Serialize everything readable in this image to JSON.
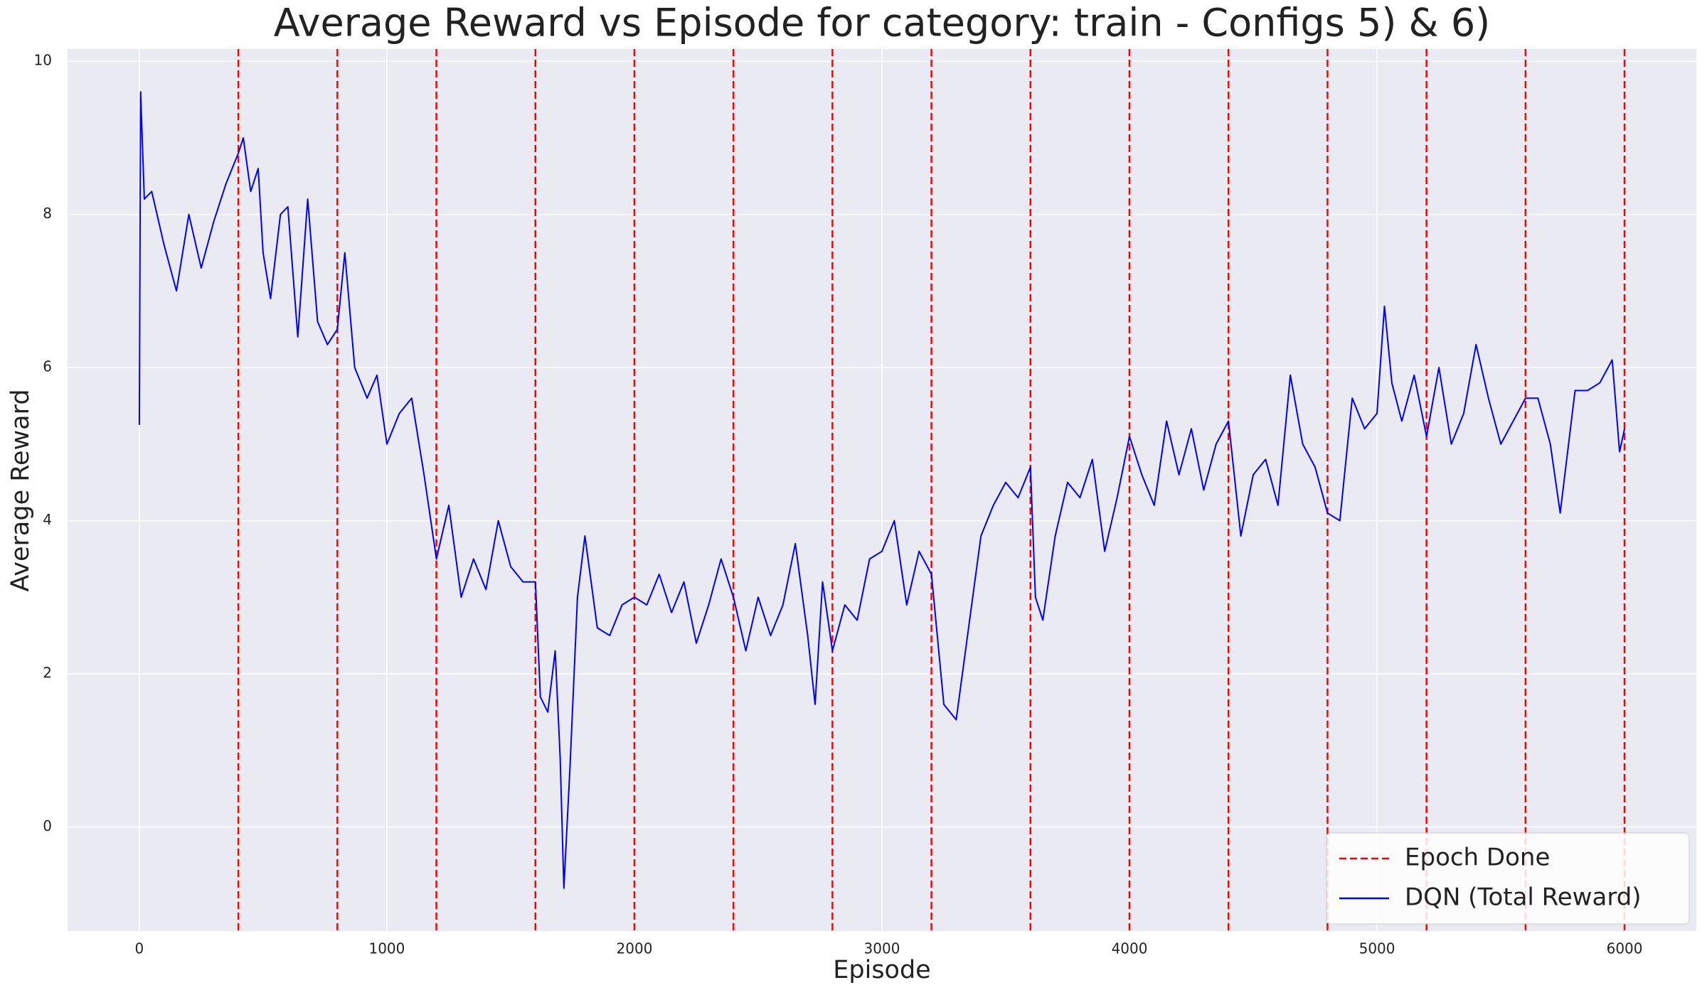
{
  "chart_data": {
    "type": "line",
    "title": "Average Reward vs Episode for category: train - Configs 5) & 6)",
    "x_label": "Episode",
    "y_label": "Average Reward",
    "xlim": [
      -290,
      6290
    ],
    "ylim": [
      -1.36,
      10.16
    ],
    "xticks": [
      0,
      1000,
      2000,
      3000,
      4000,
      5000,
      6000
    ],
    "yticks": [
      0,
      2,
      4,
      6,
      8,
      10
    ],
    "grid": true,
    "legend": "lower right",
    "series": [
      {
        "name": "Epoch Done",
        "color": "#ff0000",
        "dashed": true,
        "vlines": [
          400,
          800,
          1200,
          1600,
          2000,
          2400,
          2800,
          3200,
          3600,
          4000,
          4400,
          4800,
          5200,
          5600,
          6000
        ]
      },
      {
        "name": "DQN (Total Reward)",
        "color": "#0000ff",
        "x": [
          0,
          5,
          20,
          50,
          100,
          150,
          200,
          250,
          300,
          350,
          400,
          420,
          450,
          480,
          500,
          530,
          570,
          600,
          640,
          680,
          720,
          760,
          800,
          830,
          870,
          920,
          960,
          1000,
          1050,
          1100,
          1150,
          1200,
          1250,
          1300,
          1350,
          1400,
          1450,
          1500,
          1550,
          1600,
          1620,
          1650,
          1680,
          1700,
          1715,
          1740,
          1770,
          1800,
          1850,
          1900,
          1950,
          2000,
          2050,
          2100,
          2150,
          2200,
          2250,
          2300,
          2350,
          2400,
          2450,
          2500,
          2550,
          2600,
          2650,
          2700,
          2730,
          2760,
          2800,
          2850,
          2900,
          2950,
          3000,
          3050,
          3100,
          3150,
          3200,
          3250,
          3300,
          3350,
          3400,
          3450,
          3500,
          3550,
          3600,
          3620,
          3650,
          3700,
          3750,
          3800,
          3850,
          3900,
          3950,
          4000,
          4050,
          4100,
          4150,
          4200,
          4250,
          4300,
          4350,
          4400,
          4450,
          4500,
          4550,
          4600,
          4650,
          4700,
          4750,
          4800,
          4850,
          4900,
          4950,
          5000,
          5030,
          5060,
          5100,
          5150,
          5200,
          5250,
          5300,
          5350,
          5400,
          5450,
          5500,
          5550,
          5600,
          5650,
          5700,
          5740,
          5800,
          5850,
          5900,
          5950,
          5980,
          6000
        ],
        "values": [
          5.25,
          9.6,
          8.2,
          8.3,
          7.6,
          7.0,
          8.0,
          7.3,
          7.9,
          8.4,
          8.8,
          9.0,
          8.3,
          8.6,
          7.5,
          6.9,
          8.0,
          8.1,
          6.4,
          8.2,
          6.6,
          6.3,
          6.5,
          7.5,
          6.0,
          5.6,
          5.9,
          5.0,
          5.4,
          5.6,
          4.6,
          3.5,
          4.2,
          3.0,
          3.5,
          3.1,
          4.0,
          3.4,
          3.2,
          3.2,
          1.7,
          1.5,
          2.3,
          0.9,
          -0.8,
          0.8,
          3.0,
          3.8,
          2.6,
          2.5,
          2.9,
          3.0,
          2.9,
          3.3,
          2.8,
          3.2,
          2.4,
          2.9,
          3.5,
          3.0,
          2.3,
          3.0,
          2.5,
          2.9,
          3.7,
          2.5,
          1.6,
          3.2,
          2.3,
          2.9,
          2.7,
          3.5,
          3.6,
          4.0,
          2.9,
          3.6,
          3.3,
          1.6,
          1.4,
          2.6,
          3.8,
          4.2,
          4.5,
          4.3,
          4.7,
          3.0,
          2.7,
          3.8,
          4.5,
          4.3,
          4.8,
          3.6,
          4.3,
          5.1,
          4.6,
          4.2,
          5.3,
          4.6,
          5.2,
          4.4,
          5.0,
          5.3,
          3.8,
          4.6,
          4.8,
          4.2,
          5.9,
          5.0,
          4.7,
          4.1,
          4.0,
          5.6,
          5.2,
          5.4,
          6.8,
          5.8,
          5.3,
          5.9,
          5.1,
          6.0,
          5.0,
          5.4,
          6.3,
          5.6,
          5.0,
          5.3,
          5.6,
          5.6,
          5.0,
          4.1,
          5.7,
          5.7,
          5.8,
          6.1,
          4.9,
          5.2
        ]
      }
    ]
  }
}
